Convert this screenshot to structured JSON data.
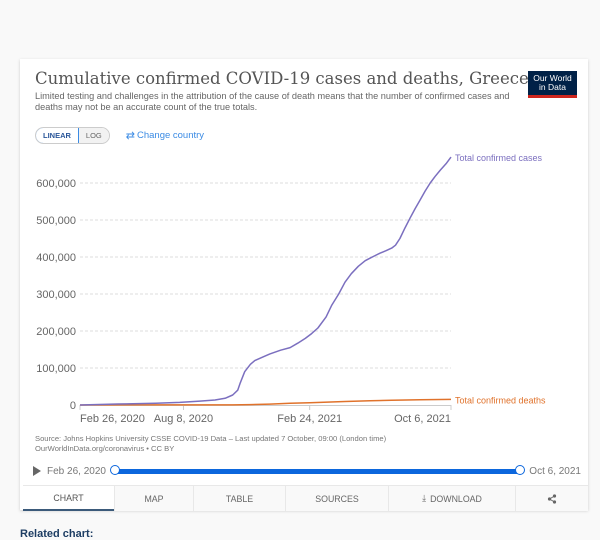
{
  "header": {
    "title": "Cumulative confirmed COVID-19 cases and deaths, Greece",
    "subtitle": "Limited testing and challenges in the attribution of the cause of death means that the number of confirmed cases and deaths may not be an accurate count of the true totals.",
    "logo_line1": "Our World",
    "logo_line2": "in Data"
  },
  "controls": {
    "linear_label": "LINEAR",
    "log_label": "LOG",
    "change_country_icon": "swap-arrows-icon",
    "change_country_label": "Change country"
  },
  "colors": {
    "cases": "#7b6fbf",
    "deaths": "#e0722b",
    "accent": "#0c67dd",
    "logo_bg": "#002147",
    "logo_bar": "#ce261e"
  },
  "chart_data": {
    "type": "line",
    "title": "Cumulative confirmed COVID-19 cases and deaths, Greece",
    "xlabel": "",
    "ylabel": "",
    "x_start_date": "2020-02-26",
    "x_unit": "days since Feb 26, 2020",
    "xlim": [
      0,
      588
    ],
    "ylim": [
      0,
      670000
    ],
    "y_ticks": [
      0,
      100000,
      200000,
      300000,
      400000,
      500000,
      600000
    ],
    "y_tick_labels": [
      "0",
      "100,000",
      "200,000",
      "300,000",
      "400,000",
      "500,000",
      "600,000"
    ],
    "x_ticks": [
      0,
      164,
      364,
      588
    ],
    "x_tick_labels": [
      "Feb 26, 2020",
      "Aug 8, 2020",
      "Feb 24, 2021",
      "Oct 6, 2021"
    ],
    "grid": "horizontal-dashed",
    "legend": "inline-right",
    "series": [
      {
        "name": "Total confirmed cases",
        "x": [
          0,
          60,
          120,
          158,
          190,
          214,
          230,
          242,
          250,
          254,
          261,
          270,
          277,
          290,
          301,
          318,
          333,
          345,
          357,
          367,
          377,
          390,
          399,
          410,
          420,
          430,
          441,
          452,
          460,
          468,
          475,
          485,
          494,
          500,
          507,
          515,
          523,
          531,
          539,
          547,
          555,
          563,
          571,
          580,
          588
        ],
        "values": [
          0,
          2800,
          4500,
          7000,
          10500,
          13500,
          18000,
          27000,
          40000,
          60000,
          90000,
          110000,
          120000,
          130000,
          138000,
          148000,
          155000,
          167000,
          180000,
          193000,
          208000,
          238000,
          270000,
          300000,
          332000,
          355000,
          375000,
          390000,
          397000,
          404000,
          410000,
          417000,
          424000,
          432000,
          450000,
          478000,
          505000,
          530000,
          554000,
          578000,
          600000,
          618000,
          635000,
          652000,
          670000
        ]
      },
      {
        "name": "Total confirmed deaths",
        "x": [
          0,
          60,
          120,
          190,
          242,
          270,
          301,
          333,
          364,
          420,
          460,
          494,
          539,
          588
        ],
        "values": [
          0,
          150,
          190,
          230,
          400,
          1000,
          2500,
          4500,
          6200,
          9500,
          11500,
          12800,
          14000,
          15200
        ]
      }
    ]
  },
  "source": {
    "line1": "Source: Johns Hopkins University CSSE COVID-19 Data – Last updated 7 October, 09:00 (London time)",
    "line2": "OurWorldInData.org/coronavirus • CC BY"
  },
  "timeline": {
    "start_label": "Feb 26, 2020",
    "end_label": "Oct 6, 2021",
    "range_start_fraction": 0,
    "range_end_fraction": 1
  },
  "tabs": [
    {
      "label": "CHART",
      "icon": "",
      "active": true
    },
    {
      "label": "MAP",
      "icon": "",
      "active": false
    },
    {
      "label": "TABLE",
      "icon": "",
      "active": false
    },
    {
      "label": "SOURCES",
      "icon": "",
      "active": false
    },
    {
      "label": "DOWNLOAD",
      "icon": "download-icon",
      "active": false
    },
    {
      "label": "",
      "icon": "share-icon",
      "active": false
    }
  ],
  "related": {
    "label": "Related chart:"
  }
}
